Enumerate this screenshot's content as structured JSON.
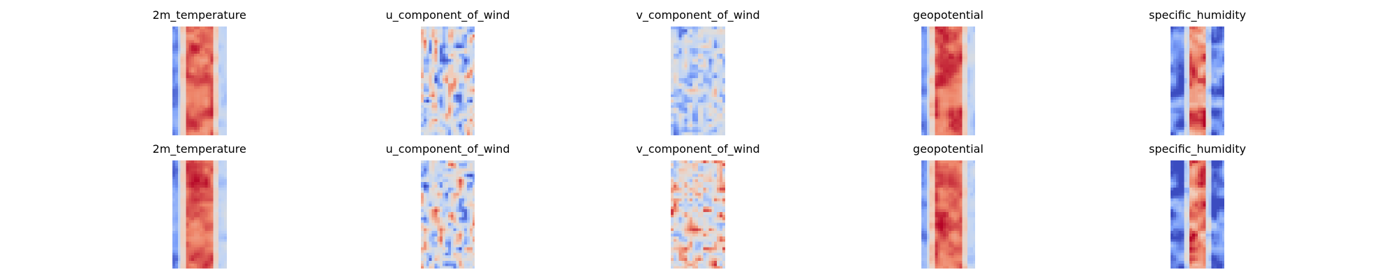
{
  "figure": {
    "colormap": "coolwarm",
    "colormap_colors": [
      "#3b4cc0",
      "#7b9ff9",
      "#c0d4f5",
      "#dddddd",
      "#f2cbb7",
      "#ee8468",
      "#b40426"
    ],
    "rows": [
      {
        "panels": [
          {
            "title": "2m_temperature",
            "pattern": "band-warm"
          },
          {
            "title": "u_component_of_wind",
            "pattern": "streaky"
          },
          {
            "title": "v_component_of_wind",
            "pattern": "mottled-cool"
          },
          {
            "title": "geopotential",
            "pattern": "band-warm"
          },
          {
            "title": "specific_humidity",
            "pattern": "band-narrow"
          }
        ]
      },
      {
        "panels": [
          {
            "title": "2m_temperature",
            "pattern": "band-warm"
          },
          {
            "title": "u_component_of_wind",
            "pattern": "streaky"
          },
          {
            "title": "v_component_of_wind",
            "pattern": "mottled-warm"
          },
          {
            "title": "geopotential",
            "pattern": "band-warm"
          },
          {
            "title": "specific_humidity",
            "pattern": "band-narrow"
          }
        ]
      }
    ]
  },
  "chart_data": {
    "type": "heatmap",
    "colormap": "coolwarm",
    "grid": false,
    "axes_visible": false,
    "rows": 2,
    "columns": 5,
    "titles": [
      [
        "2m_temperature",
        "u_component_of_wind",
        "v_component_of_wind",
        "geopotential",
        "specific_humidity"
      ],
      [
        "2m_temperature",
        "u_component_of_wind",
        "v_component_of_wind",
        "geopotential",
        "specific_humidity"
      ]
    ]
  }
}
